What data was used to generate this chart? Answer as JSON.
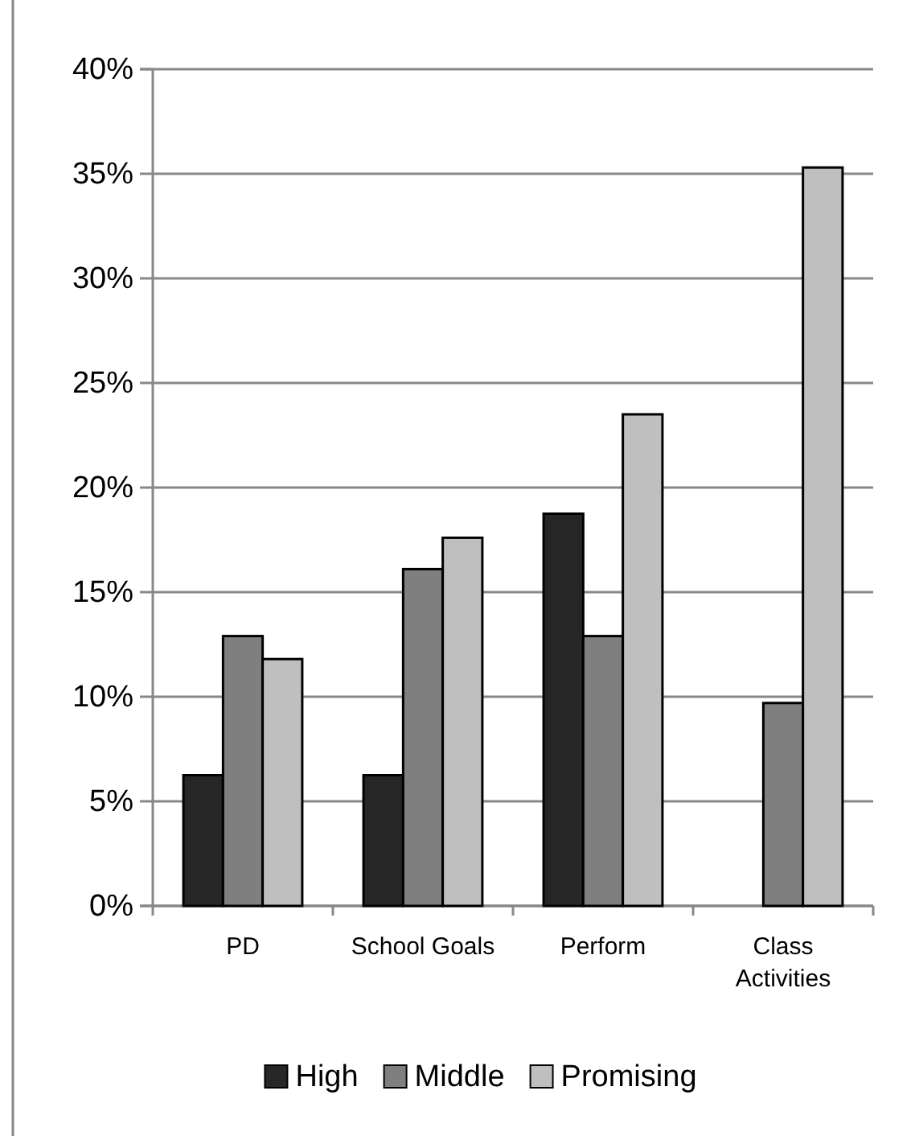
{
  "chart_data": {
    "type": "bar",
    "categories": [
      "PD",
      "School Goals",
      "Perform",
      "Class Activities"
    ],
    "series": [
      {
        "name": "High",
        "color": "#262626",
        "values": [
          6.25,
          6.25,
          18.75,
          0
        ]
      },
      {
        "name": "Middle",
        "color": "#7f7f7f",
        "values": [
          12.9,
          16.1,
          12.9,
          9.7
        ]
      },
      {
        "name": "Promising",
        "color": "#bfbfbf",
        "values": [
          11.8,
          17.6,
          23.5,
          35.3
        ]
      }
    ],
    "ylim": [
      0,
      40
    ],
    "yticks": [
      {
        "value": 0,
        "label": "0%"
      },
      {
        "value": 5,
        "label": "5%"
      },
      {
        "value": 10,
        "label": "10%"
      },
      {
        "value": 15,
        "label": "15%"
      },
      {
        "value": 20,
        "label": "20%"
      },
      {
        "value": 25,
        "label": "25%"
      },
      {
        "value": 30,
        "label": "30%"
      },
      {
        "value": 35,
        "label": "35%"
      },
      {
        "value": 40,
        "label": "40%"
      }
    ],
    "grid": "y",
    "legend": "bottom"
  }
}
